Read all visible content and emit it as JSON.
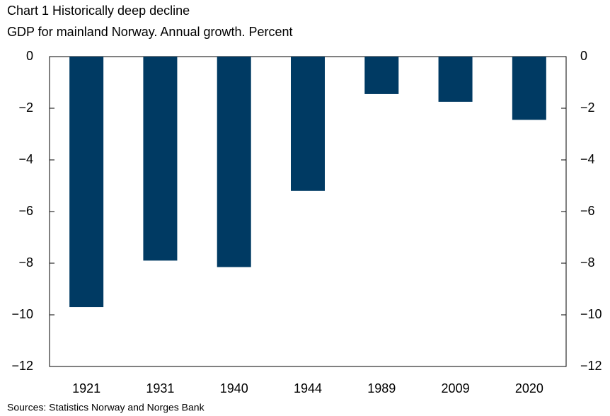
{
  "chart_data": {
    "type": "bar",
    "title": "Chart 1 Historically deep decline",
    "subtitle": "GDP for mainland Norway. Annual growth. Percent",
    "source": "Sources: Statistics Norway and Norges Bank",
    "categories": [
      "1921",
      "1931",
      "1940",
      "1944",
      "1989",
      "2009",
      "2020"
    ],
    "values": [
      -9.7,
      -7.9,
      -8.15,
      -5.2,
      -1.45,
      -1.75,
      -2.45
    ],
    "color": "#003a63",
    "ylim": [
      -12,
      0
    ],
    "yticks": [
      {
        "value": -12,
        "label": "−12"
      },
      {
        "value": -10,
        "label": "−10"
      },
      {
        "value": -8,
        "label": "−8"
      },
      {
        "value": -6,
        "label": "−6"
      },
      {
        "value": -4,
        "label": "−4"
      },
      {
        "value": -2,
        "label": "−2"
      },
      0
    ],
    "y2lim": [
      -12,
      0
    ],
    "y2ticks": [
      {
        "value": -12,
        "label": "−12"
      },
      {
        "value": -10,
        "label": "−10"
      },
      {
        "value": -8,
        "label": "−8"
      },
      {
        "value": -6,
        "label": "−6"
      },
      {
        "value": -4,
        "label": "−4"
      },
      {
        "value": -2,
        "label": "−2"
      },
      0
    ],
    "grid": false
  }
}
